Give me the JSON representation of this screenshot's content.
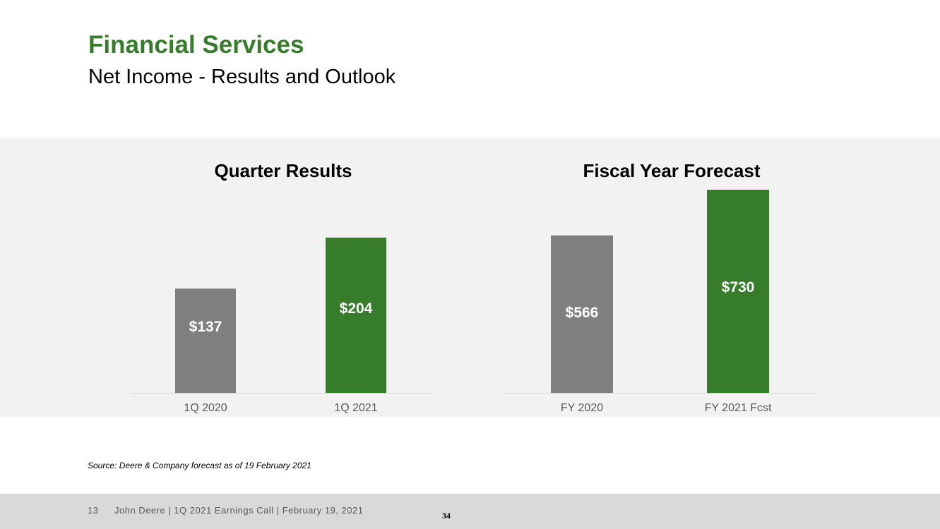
{
  "header": {
    "title": "Financial Services",
    "subtitle": "Net Income - Results and Outlook"
  },
  "colors": {
    "accent_green": "#367c2b",
    "bar_gray": "#7f7f7f",
    "panel_bg": "#f2f2f2",
    "footer_bg": "#d9d9d9"
  },
  "chart_data": [
    {
      "type": "bar",
      "title": "Quarter Results",
      "categories": [
        "1Q 2020",
        "1Q 2021"
      ],
      "values": [
        137,
        204
      ],
      "data_labels": [
        "$137",
        "$204"
      ],
      "bar_colors": [
        "#7f7f7f",
        "#367c2b"
      ],
      "xlabel": "",
      "ylabel": "",
      "ylim": [
        0,
        240
      ],
      "grid": false,
      "legend": "none"
    },
    {
      "type": "bar",
      "title": "Fiscal Year Forecast",
      "categories": [
        "FY 2020",
        "FY 2021 Fcst"
      ],
      "values": [
        566,
        730
      ],
      "data_labels": [
        "$566",
        "$730"
      ],
      "bar_colors": [
        "#7f7f7f",
        "#367c2b"
      ],
      "xlabel": "",
      "ylabel": "",
      "ylim": [
        0,
        730
      ],
      "grid": false,
      "legend": "none"
    }
  ],
  "source_note": "Source: Deere & Company forecast as of 19 February 2021",
  "footer": {
    "slide_number": "13",
    "text": "John Deere | 1Q 2021 Earnings Call | February 19, 2021",
    "page_number": "34"
  }
}
